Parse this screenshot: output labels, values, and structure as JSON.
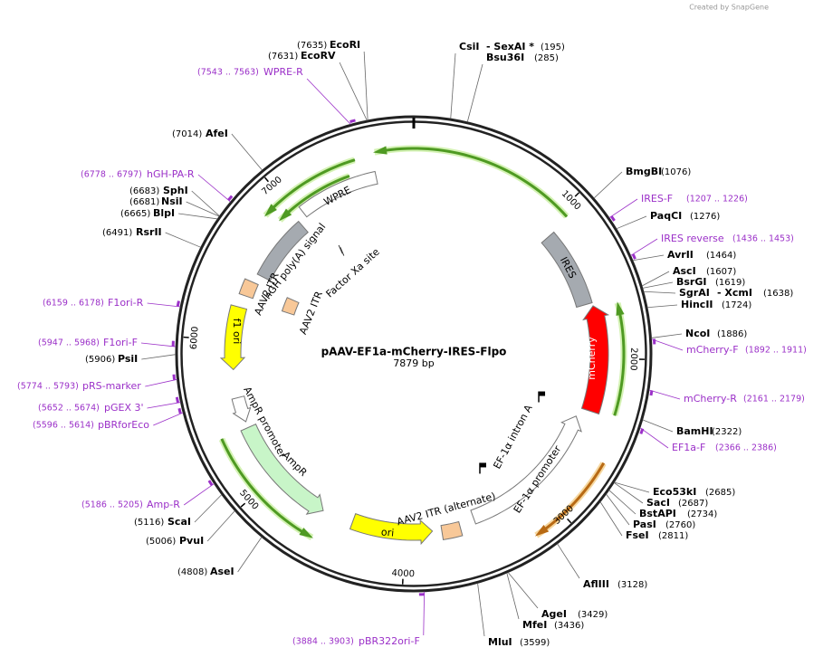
{
  "watermark": "Created by SnapGene",
  "map": {
    "name": "pAAV-EF1a-mCherry-IRES-Flpo",
    "length": {
      "value": 7879,
      "label": "7879 bp"
    },
    "ticks": [
      1000,
      2000,
      3000,
      4000,
      5000,
      6000,
      7000
    ]
  },
  "enzymes": [
    {
      "name": "CsiI",
      "also": "- SexAI *",
      "site": {
        "value": 195,
        "label": "(195)"
      }
    },
    {
      "name": "Bsu36I",
      "site": {
        "value": 285,
        "label": "(285)"
      }
    },
    {
      "name": "BmgBI",
      "site": {
        "value": 1076,
        "label": "(1076)"
      }
    },
    {
      "name": "PaqCI",
      "site": {
        "value": 1276,
        "label": "(1276)"
      }
    },
    {
      "name": "AvrII",
      "site": {
        "value": 1464,
        "label": "(1464)"
      }
    },
    {
      "name": "AscI",
      "site": {
        "value": 1607,
        "label": "(1607)"
      }
    },
    {
      "name": "BsrGI",
      "site": {
        "value": 1619,
        "label": "(1619)"
      }
    },
    {
      "name": "SgrAI",
      "also": "- XcmI",
      "site": {
        "value": 1638,
        "label": "(1638)"
      }
    },
    {
      "name": "HincII",
      "site": {
        "value": 1724,
        "label": "(1724)"
      }
    },
    {
      "name": "NcoI",
      "site": {
        "value": 1886,
        "label": "(1886)"
      }
    },
    {
      "name": "BamHI",
      "site": {
        "value": 2322,
        "label": "(2322)"
      }
    },
    {
      "name": "Eco53kI",
      "site": {
        "value": 2685,
        "label": "(2685)"
      }
    },
    {
      "name": "SacI",
      "site": {
        "value": 2687,
        "label": "(2687)"
      }
    },
    {
      "name": "BstAPI",
      "site": {
        "value": 2734,
        "label": "(2734)"
      }
    },
    {
      "name": "PasI",
      "site": {
        "value": 2760,
        "label": "(2760)"
      }
    },
    {
      "name": "FseI",
      "site": {
        "value": 2811,
        "label": "(2811)"
      }
    },
    {
      "name": "AflIII",
      "site": {
        "value": 3128,
        "label": "(3128)"
      }
    },
    {
      "name": "AgeI",
      "site": {
        "value": 3429,
        "label": "(3429)"
      }
    },
    {
      "name": "MfeI",
      "site": {
        "value": 3436,
        "label": "(3436)"
      }
    },
    {
      "name": "MluI",
      "site": {
        "value": 3599,
        "label": "(3599)"
      }
    },
    {
      "name": "AseI",
      "site": {
        "value": 4808,
        "label": "(4808)"
      }
    },
    {
      "name": "PvuI",
      "site": {
        "value": 5006,
        "label": "(5006)"
      }
    },
    {
      "name": "ScaI",
      "site": {
        "value": 5116,
        "label": "(5116)"
      }
    },
    {
      "name": "PsiI",
      "site": {
        "value": 5906,
        "label": "(5906)"
      }
    },
    {
      "name": "RsrII",
      "site": {
        "value": 6491,
        "label": "(6491)"
      }
    },
    {
      "name": "BlpI",
      "site": {
        "value": 6665,
        "label": "(6665)"
      }
    },
    {
      "name": "NsiI",
      "site": {
        "value": 6681,
        "label": "(6681)"
      }
    },
    {
      "name": "SphI",
      "site": {
        "value": 6683,
        "label": "(6683)"
      }
    },
    {
      "name": "AfeI",
      "site": {
        "value": 7014,
        "label": "(7014)"
      }
    },
    {
      "name": "EcoRV",
      "site": {
        "value": 7631,
        "label": "(7631)"
      }
    },
    {
      "name": "EcoRI",
      "site": {
        "value": 7635,
        "label": "(7635)"
      }
    }
  ],
  "primers": [
    {
      "name": "IRES-F",
      "site": {
        "value": 1207,
        "end": 1226,
        "label": "(1207 .. 1226)"
      }
    },
    {
      "name": "IRES reverse",
      "site": {
        "value": 1436,
        "end": 1453,
        "label": "(1436 .. 1453)"
      }
    },
    {
      "name": "mCherry-F",
      "site": {
        "value": 1892,
        "end": 1911,
        "label": "(1892 .. 1911)"
      }
    },
    {
      "name": "mCherry-R",
      "site": {
        "value": 2161,
        "end": 2179,
        "label": "(2161 .. 2179)"
      }
    },
    {
      "name": "EF1a-F",
      "site": {
        "value": 2366,
        "end": 2386,
        "label": "(2366 .. 2386)"
      }
    },
    {
      "name": "pBR322ori-F",
      "site": {
        "value": 3884,
        "end": 3903,
        "label": "(3884 .. 3903)"
      }
    },
    {
      "name": "Amp-R",
      "site": {
        "value": 5186,
        "end": 5205,
        "label": "(5186 .. 5205)"
      }
    },
    {
      "name": "pBRforEco",
      "site": {
        "value": 5596,
        "end": 5614,
        "label": "(5596 .. 5614)"
      }
    },
    {
      "name": "pGEX 3'",
      "site": {
        "value": 5652,
        "end": 5674,
        "label": "(5652 .. 5674)"
      }
    },
    {
      "name": "pRS-marker",
      "site": {
        "value": 5774,
        "end": 5793,
        "label": "(5774 .. 5793)"
      }
    },
    {
      "name": "F1ori-F",
      "site": {
        "value": 5947,
        "end": 5968,
        "label": "(5947 .. 5968)"
      }
    },
    {
      "name": "F1ori-R",
      "site": {
        "value": 6159,
        "end": 6178,
        "label": "(6159 .. 6178)"
      }
    },
    {
      "name": "hGH-PA-R",
      "site": {
        "value": 6778,
        "end": 6797,
        "label": "(6778 .. 6797)"
      }
    },
    {
      "name": "WPRE-R",
      "site": {
        "value": 7543,
        "end": 7563,
        "label": "(7543 .. 7563)"
      }
    }
  ],
  "features": [
    {
      "label": "WPRE"
    },
    {
      "label": "hGH poly(A) signal"
    },
    {
      "label": "Factor Xa site"
    },
    {
      "label": "AAV2 ITR"
    },
    {
      "label": "AAV2 ITR"
    },
    {
      "label": "f1 ori"
    },
    {
      "label": "AmpR promoter"
    },
    {
      "label": "AmpR"
    },
    {
      "label": "ori"
    },
    {
      "label": "AAV2 ITR (alternate)"
    },
    {
      "label": "EF-1α promoter"
    },
    {
      "label": "EF-1α intron A"
    },
    {
      "label": "mCherry"
    },
    {
      "label": "IRES"
    }
  ]
}
